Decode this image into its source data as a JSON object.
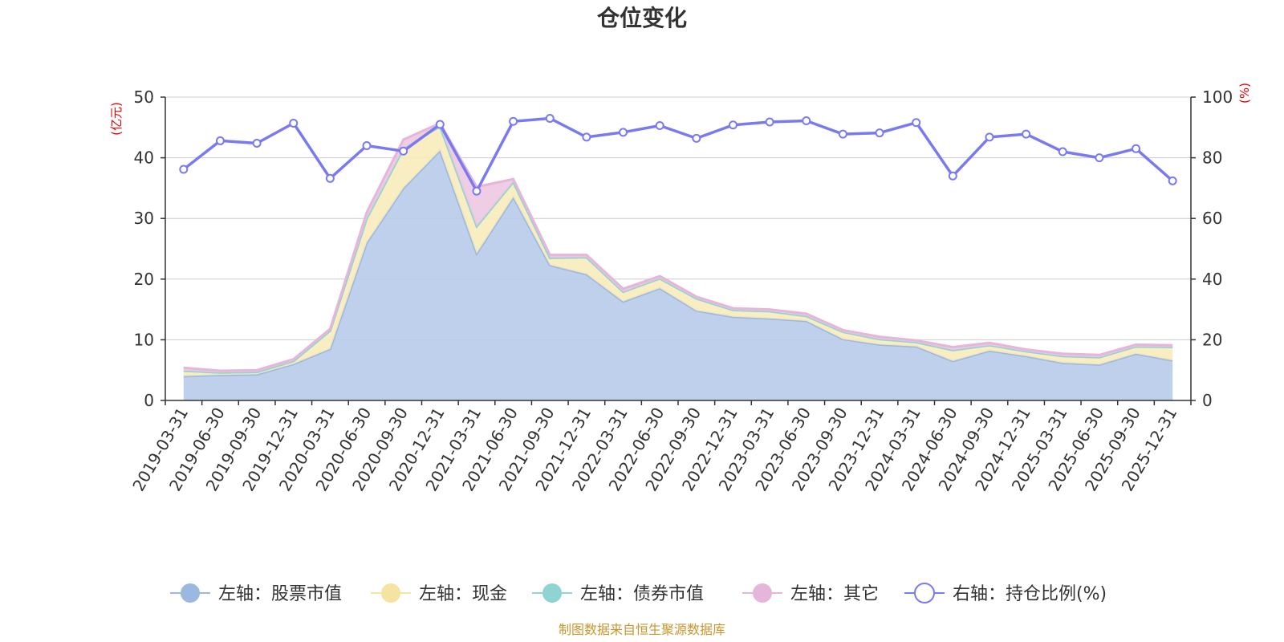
{
  "chart_data": {
    "type": "area",
    "title": "仓位变化",
    "left_axis": {
      "unit": "(亿元)",
      "min": 0,
      "max": 50,
      "ticks": [
        0,
        10,
        20,
        30,
        40,
        50
      ]
    },
    "right_axis": {
      "unit": "(%)",
      "min": 0,
      "max": 100,
      "ticks": [
        0,
        20,
        40,
        60,
        80,
        100
      ]
    },
    "categories": [
      "2019-03-31",
      "2019-06-30",
      "2019-09-30",
      "2019-12-31",
      "2020-03-31",
      "2020-06-30",
      "2020-09-30",
      "2020-12-31",
      "2021-03-31",
      "2021-06-30",
      "2021-09-30",
      "2021-12-31",
      "2022-03-31",
      "2022-06-30",
      "2022-09-30",
      "2022-12-31",
      "2023-03-31",
      "2023-06-30",
      "2023-09-30",
      "2023-12-31",
      "2024-03-31",
      "2024-06-30",
      "2024-09-30",
      "2024-12-31",
      "2025-03-31",
      "2025-06-30",
      "2025-09-30",
      "2025-12-31"
    ],
    "stack_series": [
      {
        "name": "左轴：股票市值",
        "color": "#9bb8e0",
        "fill": "#b7cbea",
        "values": [
          4.0,
          4.2,
          4.3,
          6.0,
          8.5,
          26.0,
          35.0,
          41.2,
          24.2,
          33.5,
          22.3,
          20.8,
          16.3,
          18.5,
          14.8,
          13.8,
          13.5,
          13.1,
          10.1,
          9.2,
          8.9,
          6.5,
          8.2,
          7.3,
          6.2,
          5.9,
          7.7,
          6.6
        ]
      },
      {
        "name": "左轴：现金",
        "color": "#f5e3a0",
        "fill": "#f8ebbb",
        "values": [
          0.9,
          0.4,
          0.4,
          0.5,
          3.0,
          4.0,
          6.5,
          4.0,
          4.5,
          2.5,
          1.2,
          2.8,
          1.6,
          1.6,
          2.0,
          1.1,
          1.2,
          0.8,
          1.2,
          0.9,
          0.7,
          1.8,
          0.9,
          0.8,
          1.1,
          1.2,
          1.2,
          2.2
        ]
      },
      {
        "name": "左轴：债券市值",
        "color": "#8fd3d3",
        "fill": "#bfe6e6",
        "values": [
          0,
          0,
          0,
          0,
          0,
          0,
          0,
          0,
          0,
          0,
          0,
          0,
          0,
          0,
          0,
          0,
          0,
          0,
          0,
          0,
          0,
          0,
          0,
          0,
          0,
          0,
          0,
          0
        ]
      },
      {
        "name": "左轴：其它",
        "color": "#e6b6da",
        "fill": "#ecc8e2",
        "values": [
          0.5,
          0.3,
          0.3,
          0.3,
          0.3,
          1.0,
          1.5,
          0.5,
          6.5,
          0.5,
          0.5,
          0.4,
          0.5,
          0.4,
          0.3,
          0.3,
          0.3,
          0.4,
          0.3,
          0.4,
          0.3,
          0.5,
          0.4,
          0.3,
          0.4,
          0.4,
          0.3,
          0.3
        ]
      }
    ],
    "line_series": {
      "name": "右轴：持仓比例(%)",
      "color": "#7a7af0",
      "values": [
        76.2,
        85.6,
        84.8,
        91.4,
        73.2,
        84.0,
        82.2,
        91.0,
        69.0,
        92.0,
        93.0,
        86.8,
        88.4,
        90.6,
        86.4,
        90.8,
        91.8,
        92.2,
        87.8,
        88.2,
        91.6,
        74.0,
        86.8,
        87.8,
        82.0,
        80.0,
        83.0,
        72.4
      ]
    }
  },
  "source": "制图数据来自恒生聚源数据库"
}
